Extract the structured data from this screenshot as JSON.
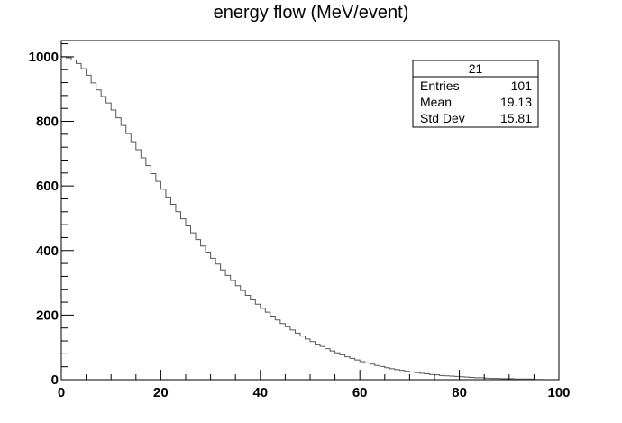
{
  "chart_data": {
    "type": "histogram",
    "title": "energy flow (MeV/event)",
    "xlabel": "",
    "ylabel": "",
    "xlim": [
      0,
      100
    ],
    "ylim": [
      0,
      1050
    ],
    "bin_width": 1,
    "x_ticks": [
      0,
      20,
      40,
      60,
      80,
      100
    ],
    "y_ticks": [
      0,
      200,
      400,
      600,
      800,
      1000
    ],
    "bins_start": 0,
    "values": [
      1000,
      997,
      990,
      979,
      963,
      943,
      919,
      897,
      877,
      857,
      835,
      811,
      787,
      762,
      737,
      712,
      687,
      663,
      638,
      614,
      590,
      566,
      543,
      520,
      498,
      476,
      455,
      434,
      414,
      395,
      376,
      358,
      340,
      323,
      307,
      291,
      276,
      261,
      247,
      234,
      221,
      209,
      197,
      185,
      174,
      164,
      154,
      144,
      135,
      126,
      118,
      110,
      103,
      96,
      89,
      83,
      77,
      71,
      66,
      61,
      56,
      52,
      48,
      44,
      41,
      37,
      34,
      31,
      29,
      26,
      24,
      22,
      20,
      18,
      16,
      15,
      13,
      12,
      11,
      10,
      9,
      8,
      7,
      6,
      6,
      5,
      4,
      4,
      3,
      3,
      3,
      2,
      2,
      2,
      2,
      1,
      1
    ],
    "stats": {
      "name": "21",
      "rows": [
        {
          "label": "Entries",
          "value": "101"
        },
        {
          "label": "Mean",
          "value": "19.13"
        },
        {
          "label": "Std Dev",
          "value": "15.81"
        }
      ]
    },
    "grid": false,
    "line_color": "#555555"
  }
}
